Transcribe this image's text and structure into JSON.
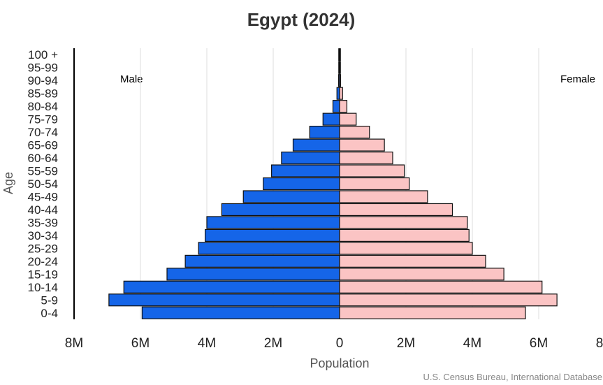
{
  "chart_data": {
    "type": "bar",
    "orientation": "horizontal",
    "title": "Egypt (2024)",
    "xlabel": "Population",
    "ylabel": "Age",
    "source": "U.S. Census Bureau, International Database",
    "categories": [
      "0-4",
      "5-9",
      "10-14",
      "15-19",
      "20-24",
      "25-29",
      "30-34",
      "35-39",
      "40-44",
      "45-49",
      "50-54",
      "55-59",
      "60-64",
      "65-69",
      "70-74",
      "75-79",
      "80-84",
      "85-89",
      "90-94",
      "95-99",
      "100 +"
    ],
    "series": [
      {
        "name": "Male",
        "color": "#1565e8",
        "values": [
          5.95,
          6.95,
          6.5,
          5.2,
          4.65,
          4.25,
          4.05,
          4.0,
          3.55,
          2.9,
          2.3,
          2.05,
          1.75,
          1.4,
          0.9,
          0.5,
          0.2,
          0.08,
          0.03,
          0.01,
          0.0
        ]
      },
      {
        "name": "Female",
        "color": "#fbc4c4",
        "values": [
          5.6,
          6.55,
          6.1,
          4.95,
          4.4,
          4.0,
          3.9,
          3.85,
          3.4,
          2.65,
          2.1,
          1.95,
          1.6,
          1.35,
          0.9,
          0.5,
          0.22,
          0.09,
          0.03,
          0.01,
          0.0
        ]
      }
    ],
    "xlim": [
      -8,
      8
    ],
    "x_unit": "M",
    "x_ticks": [
      "8M",
      "6M",
      "4M",
      "2M",
      "0",
      "2M",
      "4M",
      "6M",
      "8M"
    ],
    "x_tick_values": [
      -8,
      -6,
      -4,
      -2,
      0,
      2,
      4,
      6,
      8
    ],
    "grid": "vertical",
    "legend": [
      "Male",
      "Female"
    ]
  }
}
